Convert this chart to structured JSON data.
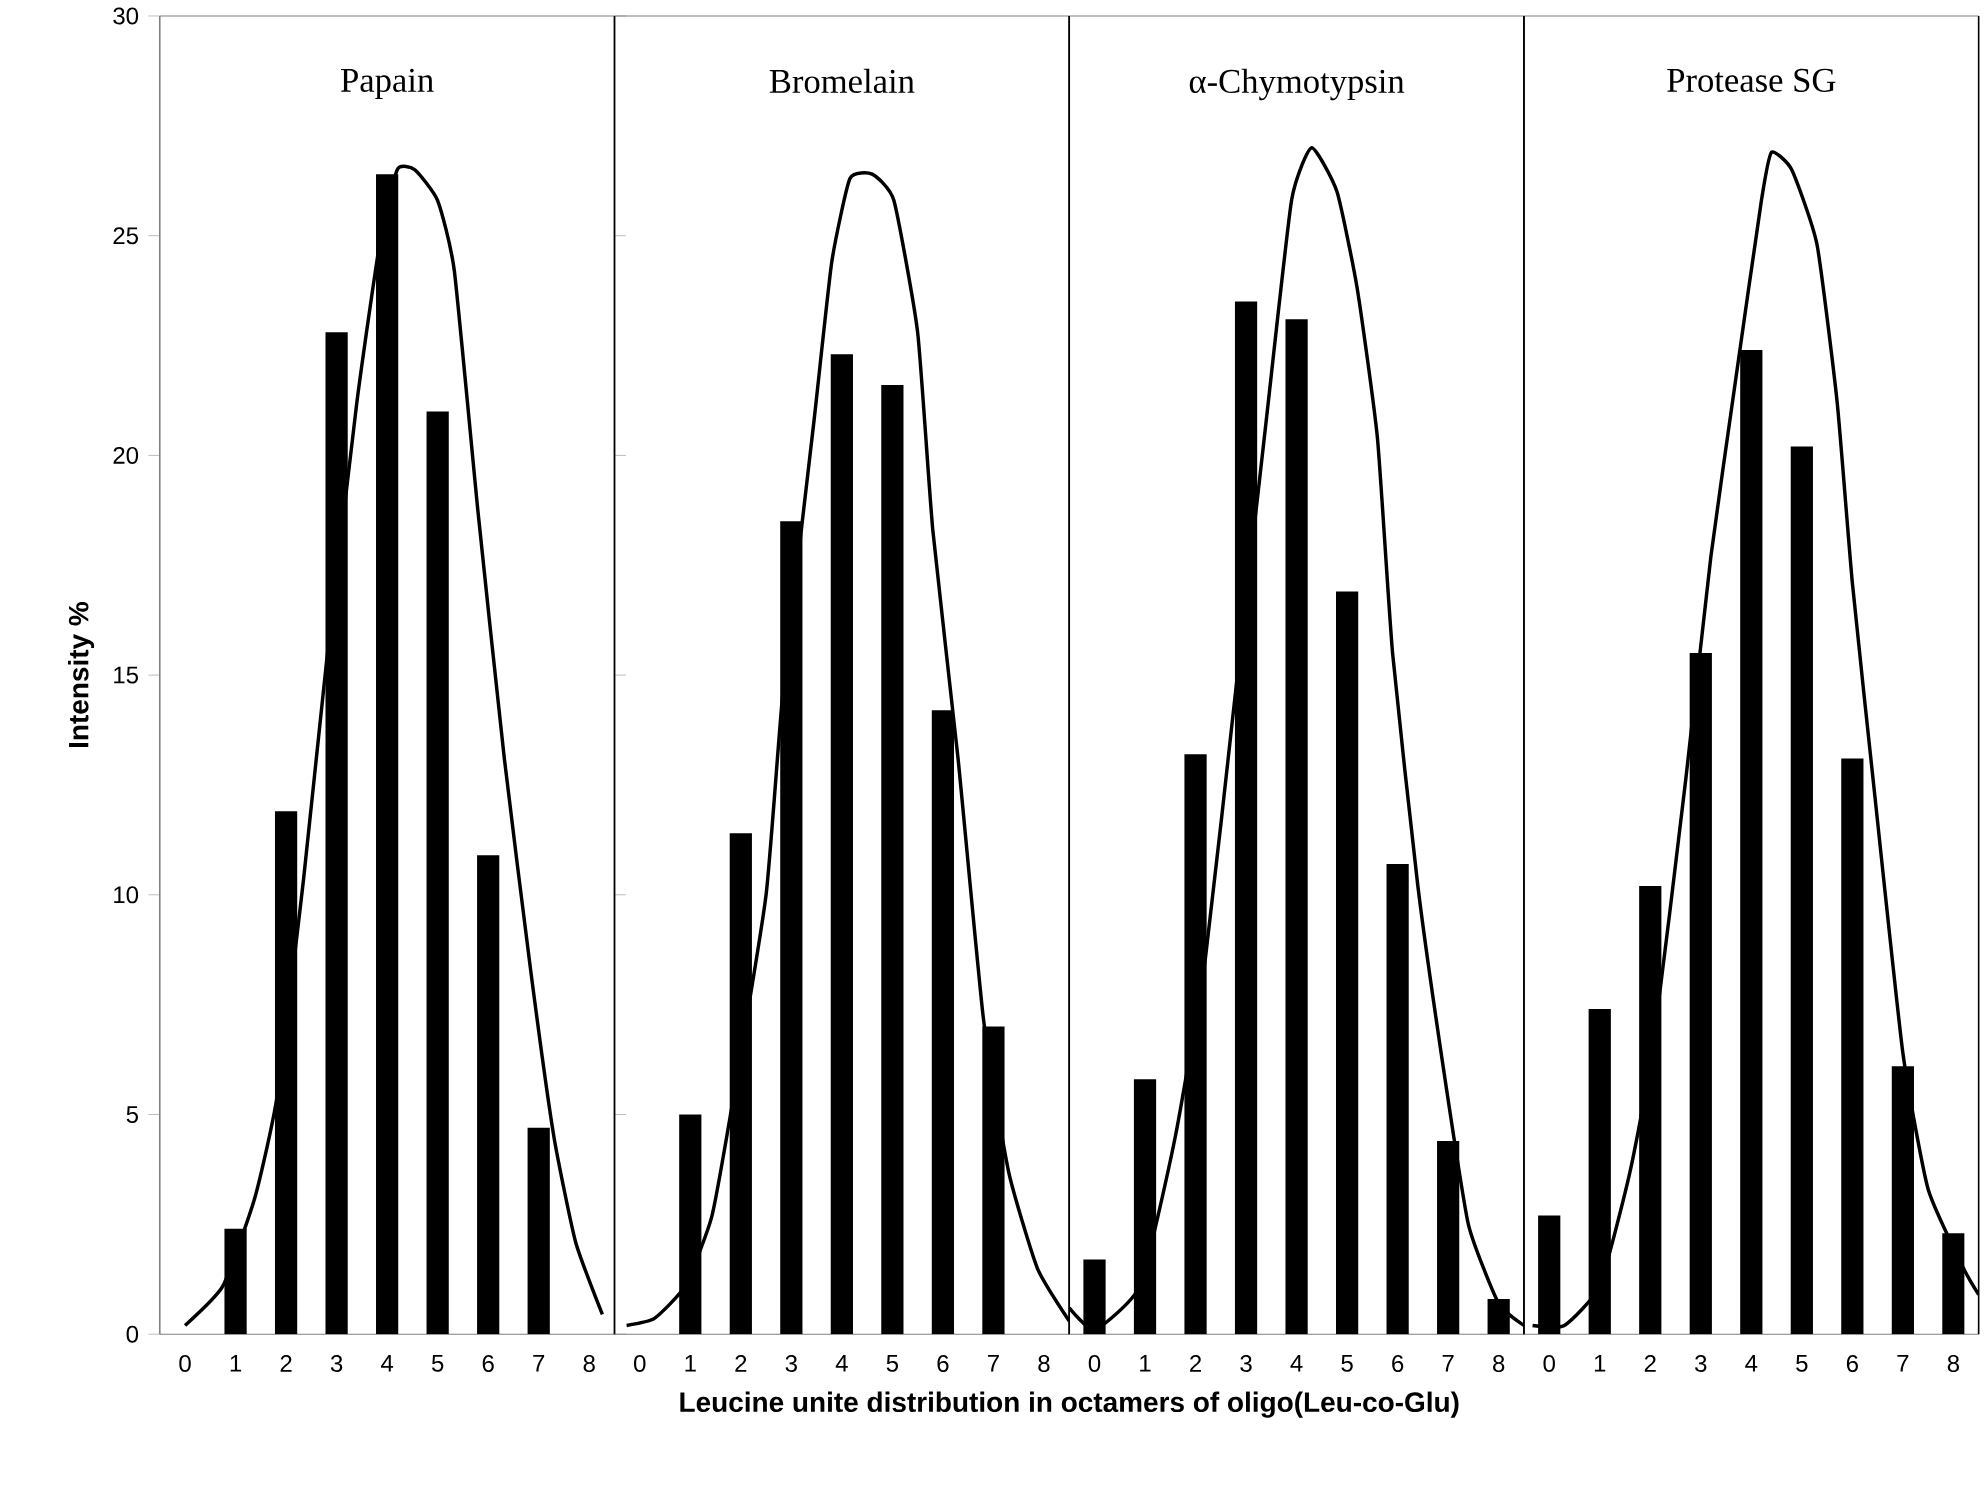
{
  "chart_data": [
    {
      "type": "bar",
      "title": "Papain",
      "ylabel": "Intensity %",
      "x": [
        0,
        1,
        2,
        3,
        4,
        5,
        6,
        7,
        8
      ],
      "xlim": [
        -0.5,
        8.5
      ],
      "xticks": [
        0,
        1,
        2,
        3,
        4,
        5,
        6,
        7,
        8
      ],
      "ylim": [
        0,
        30
      ],
      "yticks": [
        0,
        5,
        10,
        15,
        20,
        25,
        30
      ],
      "series": [
        {
          "color": "#000000",
          "values": [
            0,
            2.4,
            11.9,
            22.8,
            26.4,
            21.0,
            10.9,
            4.7,
            0
          ]
        },
        {
          "type": "line",
          "color": "#000000",
          "marker": "none",
          "line_style": "solid",
          "x": [
            0,
            0.75,
            1.38,
            1.82,
            2.35,
            2.8,
            3.4,
            3.85,
            4.2,
            4.55,
            5.0,
            5.33,
            5.8,
            6.32,
            6.85,
            7.3,
            7.73,
            8.26
          ],
          "values": [
            0.2,
            1.1,
            3.1,
            5.4,
            10.4,
            15.3,
            21.2,
            24.8,
            26.5,
            26.5,
            25.8,
            24.2,
            18.7,
            13.1,
            8.2,
            4.5,
            2.1,
            0.45
          ]
        }
      ]
    },
    {
      "type": "bar",
      "title": "Bromelain",
      "xlabel": "Leucine unite distribution in octamers of oligo(Leu-co-Glu)",
      "x": [
        0,
        1,
        2,
        3,
        4,
        5,
        6,
        7,
        8
      ],
      "xlim": [
        -0.5,
        8.5
      ],
      "xticks": [
        0,
        1,
        2,
        3,
        4,
        5,
        6,
        7,
        8
      ],
      "ylim": [
        0,
        30
      ],
      "yticks": [
        0,
        5,
        10,
        15,
        20,
        25,
        30
      ],
      "tick_labels": "x",
      "series": [
        {
          "color": "#000000",
          "values": [
            0,
            5.0,
            11.4,
            18.5,
            22.3,
            21.6,
            14.2,
            7.0,
            0
          ]
        },
        {
          "type": "line",
          "color": "#000000",
          "marker": "none",
          "line_style": "solid",
          "x": [
            -0.26,
            0.29,
            0.9,
            1.43,
            1.87,
            2.5,
            2.84,
            3.45,
            3.8,
            4.16,
            4.6,
            5.03,
            5.5,
            5.8,
            6.3,
            6.8,
            7.3,
            7.87,
            8.5
          ],
          "values": [
            0.2,
            0.36,
            1.1,
            2.7,
            5.5,
            10.0,
            14.7,
            20.8,
            24.4,
            26.3,
            26.4,
            25.8,
            22.8,
            18.3,
            13.1,
            7.2,
            3.7,
            1.5,
            0.3
          ]
        }
      ]
    },
    {
      "type": "bar",
      "title": "α-Chymotypsin",
      "x": [
        0,
        1,
        2,
        3,
        4,
        5,
        6,
        7,
        8
      ],
      "xlim": [
        -0.5,
        8.5
      ],
      "xticks": [
        0,
        1,
        2,
        3,
        4,
        5,
        6,
        7,
        8
      ],
      "ylim": [
        0,
        30
      ],
      "yticks": [
        0,
        5,
        10,
        15,
        20,
        25,
        30
      ],
      "tick_labels": "x",
      "series": [
        {
          "color": "#000000",
          "values": [
            1.7,
            5.8,
            13.2,
            23.5,
            23.1,
            16.9,
            10.7,
            4.4,
            0.8
          ]
        },
        {
          "type": "line",
          "color": "#000000",
          "marker": "none",
          "line_style": "solid",
          "x": [
            -0.5,
            0.0,
            0.9,
            1.6,
            2.2,
            2.8,
            3.4,
            3.9,
            4.3,
            4.8,
            5.2,
            5.6,
            5.9,
            6.4,
            6.9,
            7.4,
            8.0,
            8.5
          ],
          "values": [
            0.6,
            0.1,
            1.1,
            4.5,
            8.6,
            14.7,
            20.8,
            25.8,
            27.0,
            26.0,
            23.8,
            20.4,
            15.5,
            10.2,
            6.1,
            2.5,
            0.7,
            0.2
          ]
        }
      ]
    },
    {
      "type": "bar",
      "title": "Protease SG",
      "x": [
        0,
        1,
        2,
        3,
        4,
        5,
        6,
        7,
        8
      ],
      "xlim": [
        -0.5,
        8.5
      ],
      "xticks": [
        0,
        1,
        2,
        3,
        4,
        5,
        6,
        7,
        8
      ],
      "ylim": [
        0,
        30
      ],
      "yticks": [
        0,
        5,
        10,
        15,
        20,
        25,
        30
      ],
      "tick_labels": "x",
      "series": [
        {
          "color": "#000000",
          "values": [
            2.7,
            7.4,
            10.2,
            15.5,
            22.4,
            20.2,
            13.1,
            6.1,
            2.3
          ]
        },
        {
          "type": "line",
          "color": "#000000",
          "marker": "none",
          "line_style": "solid",
          "x": [
            -0.33,
            0.3,
            1.0,
            1.6,
            2.05,
            2.7,
            3.2,
            3.7,
            4.2,
            4.4,
            4.8,
            5.3,
            5.7,
            6.0,
            6.45,
            7.0,
            7.5,
            8.2,
            8.5
          ],
          "values": [
            0.2,
            0.2,
            1.1,
            3.7,
            6.5,
            12.6,
            17.7,
            21.8,
            25.8,
            26.9,
            26.5,
            24.8,
            21.2,
            17.1,
            12.2,
            6.4,
            3.3,
            1.5,
            0.9
          ]
        }
      ]
    }
  ]
}
